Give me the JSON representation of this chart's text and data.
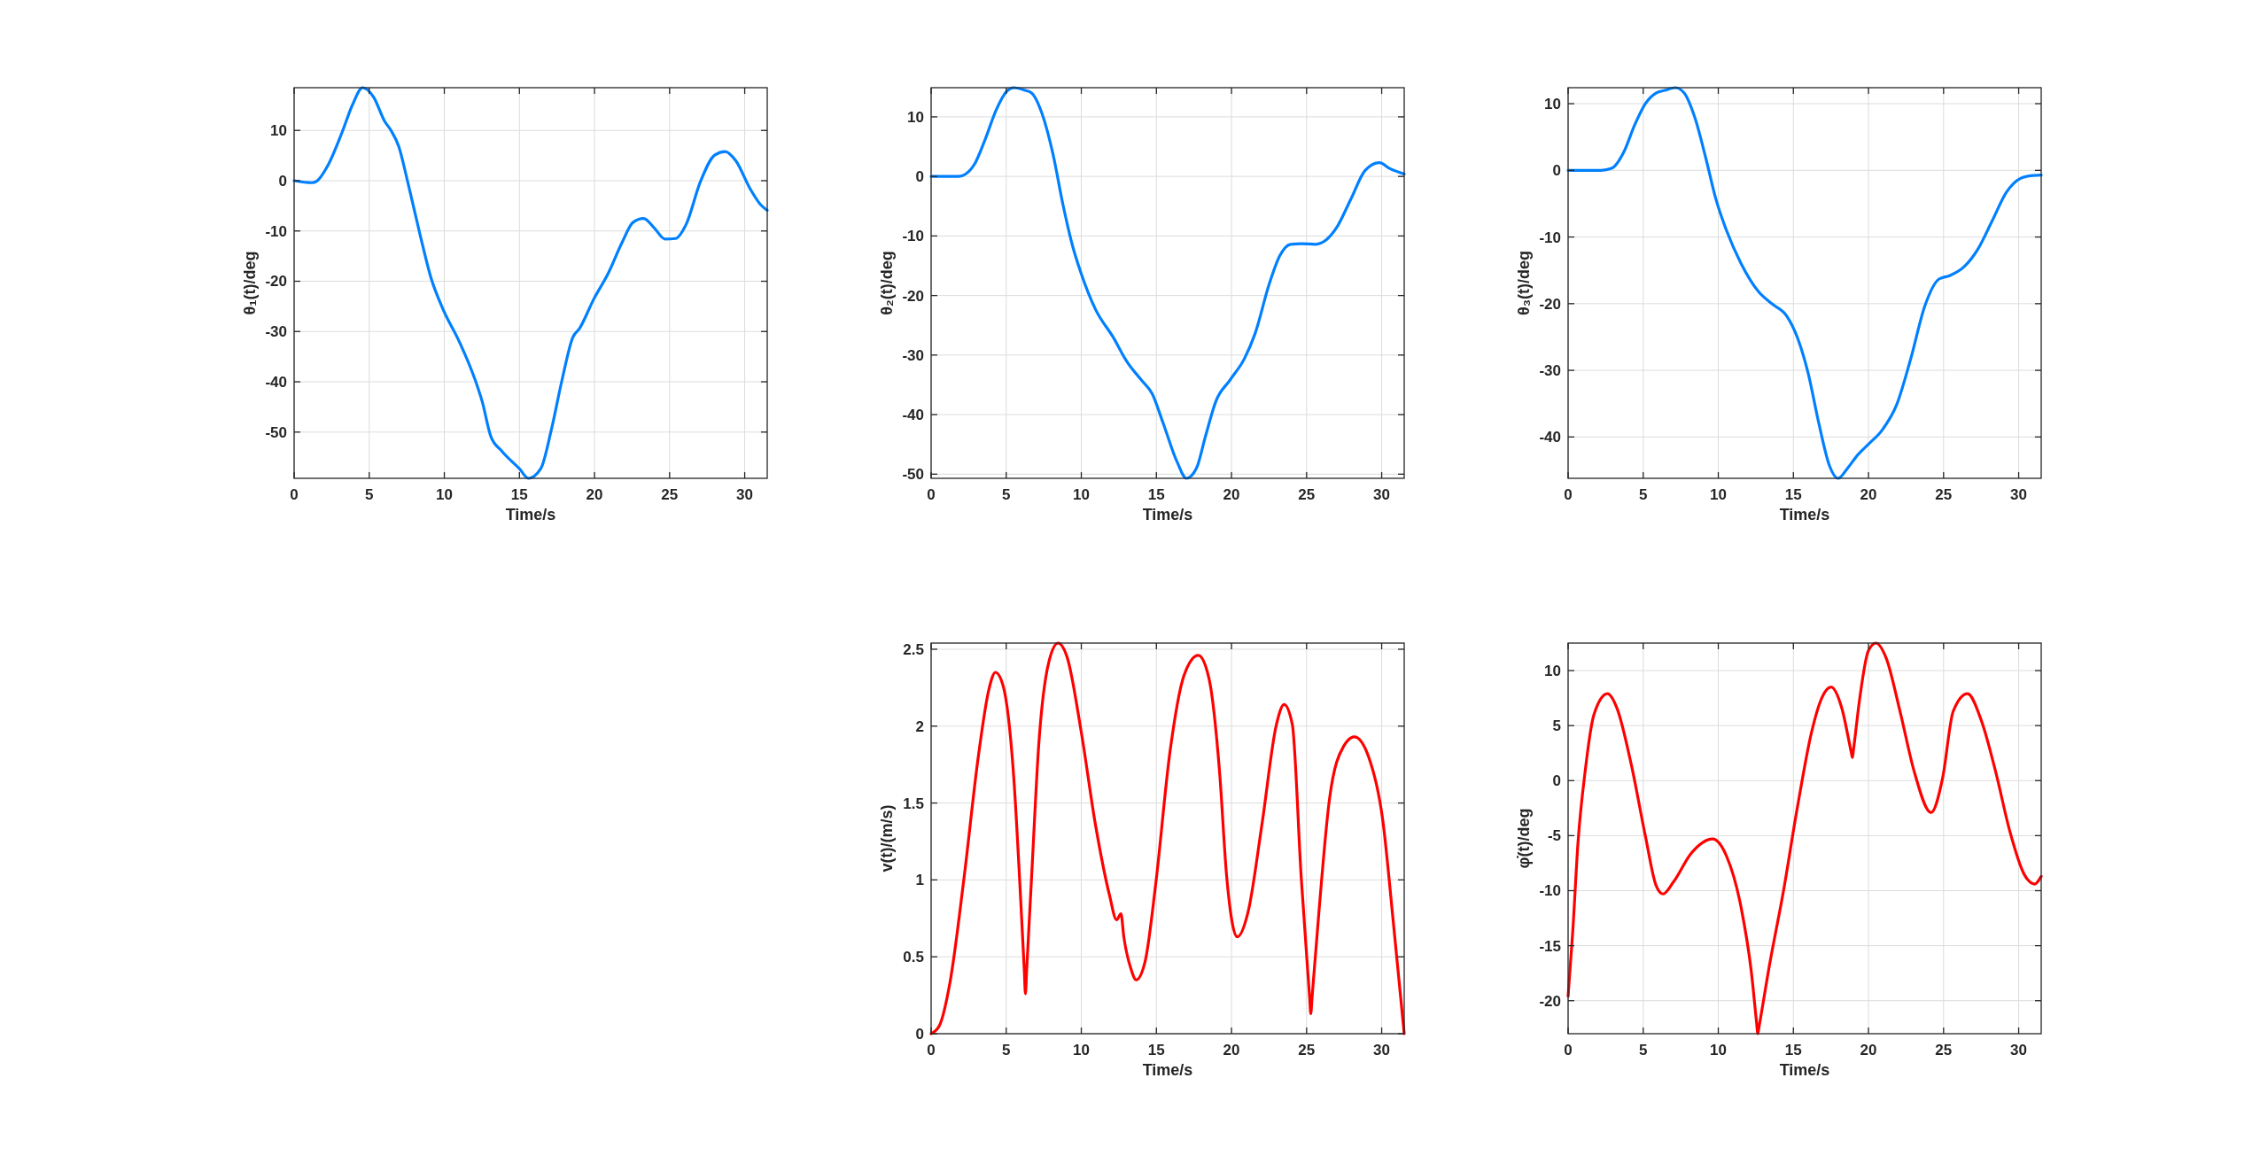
{
  "chart_data": [
    {
      "type": "line",
      "xlabel": "Time/s",
      "ylabel": "θ₁(t)/deg",
      "grid": true,
      "xlim": [
        0,
        31.5
      ],
      "ylim": [
        -59.2,
        18.5
      ],
      "xticks": [
        0,
        5,
        10,
        15,
        20,
        25,
        30
      ],
      "yticks": [
        -50,
        -40,
        -30,
        -20,
        -10,
        0,
        10
      ],
      "x": [
        0,
        1.18,
        1.5,
        2.24,
        3.19,
        3.9,
        4.56,
        5.3,
        6.03,
        6.45,
        6.97,
        7.56,
        8.39,
        9.1,
        9.92,
        10.98,
        12.05,
        12.52,
        13.1,
        13.8,
        15.0,
        15.6,
        16.42,
        17.13,
        17.84,
        18.55,
        19.0,
        19.96,
        20.9,
        21.85,
        22.56,
        23.27,
        23.98,
        24.69,
        25.4,
        26.1,
        27.05,
        28.0,
        28.7,
        29.4,
        30.36,
        31.07,
        31.5
      ],
      "series": [
        {
          "color": "#0080ff",
          "values": [
            0,
            -0.4,
            -0.1,
            3.0,
            9.6,
            15.2,
            18.5,
            16.6,
            11.8,
            10.0,
            6.8,
            -0.2,
            -10.8,
            -19.2,
            -25.6,
            -31.9,
            -39.6,
            -43.9,
            -50.9,
            -53.7,
            -57.3,
            -59.2,
            -57.3,
            -49.5,
            -39.6,
            -31.2,
            -29.4,
            -23.5,
            -18.5,
            -12.2,
            -8.3,
            -7.5,
            -9.4,
            -11.6,
            -11.5,
            -8.7,
            -0.2,
            5.1,
            5.8,
            4.0,
            -1.6,
            -4.8,
            -5.9
          ]
        }
      ]
    },
    {
      "type": "line",
      "xlabel": "Time/s",
      "ylabel": "θ₂(t)/deg",
      "grid": true,
      "xlim": [
        0,
        31.5
      ],
      "ylim": [
        -50.7,
        14.9
      ],
      "xticks": [
        0,
        5,
        10,
        15,
        20,
        25,
        30
      ],
      "yticks": [
        -50,
        -40,
        -30,
        -20,
        -10,
        0,
        10
      ],
      "x": [
        0,
        1.84,
        2.3,
        2.9,
        3.61,
        4.32,
        5.03,
        5.5,
        6.2,
        6.69,
        7.39,
        8.1,
        8.8,
        9.4,
        9.99,
        10.94,
        12.12,
        13.06,
        14.0,
        14.72,
        15.43,
        16.37,
        17.0,
        17.67,
        18.26,
        18.97,
        19.9,
        20.86,
        21.57,
        22.51,
        23.22,
        23.93,
        24.65,
        25.6,
        26.29,
        27.0,
        27.95,
        28.9,
        29.85,
        30.55,
        31.5
      ],
      "series": [
        {
          "color": "#0080ff",
          "values": [
            0,
            0,
            0.4,
            2.1,
            6.3,
            11.1,
            14.3,
            14.9,
            14.5,
            14.0,
            10.5,
            3.9,
            -5.0,
            -11.5,
            -16.3,
            -22.3,
            -27.0,
            -31.2,
            -34.2,
            -36.5,
            -41.3,
            -47.9,
            -50.7,
            -49.0,
            -43.7,
            -37.7,
            -34.2,
            -30.6,
            -26.4,
            -18.1,
            -13.3,
            -11.4,
            -11.3,
            -11.4,
            -10.7,
            -8.6,
            -3.8,
            1.0,
            2.3,
            1.3,
            0.4
          ]
        }
      ]
    },
    {
      "type": "line",
      "xlabel": "Time/s",
      "ylabel": "θ₃(t)/deg",
      "grid": true,
      "xlim": [
        0,
        31.5
      ],
      "ylim": [
        -46.2,
        12.4
      ],
      "xticks": [
        0,
        5,
        10,
        15,
        20,
        25,
        30
      ],
      "yticks": [
        -40,
        -30,
        -20,
        -10,
        0,
        10
      ],
      "x": [
        0,
        2.19,
        2.9,
        3.72,
        4.43,
        5.14,
        5.85,
        6.43,
        7.14,
        7.73,
        8.44,
        9.15,
        9.85,
        10.56,
        11.5,
        12.68,
        13.62,
        14.57,
        15.27,
        15.98,
        16.69,
        17.4,
        17.98,
        18.57,
        19.28,
        19.99,
        20.93,
        21.87,
        22.81,
        23.76,
        24.7,
        25.4,
        26.35,
        27.29,
        28.23,
        29.18,
        30.12,
        30.83,
        31.5
      ],
      "series": [
        {
          "color": "#0080ff",
          "values": [
            0,
            0,
            0.3,
            2.8,
            6.8,
            10.0,
            11.6,
            12.0,
            12.4,
            11.6,
            7.9,
            2.0,
            -4.4,
            -9.1,
            -13.9,
            -18.2,
            -20.1,
            -21.9,
            -25.1,
            -30.4,
            -37.9,
            -44.3,
            -46.2,
            -44.8,
            -42.7,
            -41.1,
            -38.9,
            -35.2,
            -28.3,
            -20.3,
            -16.3,
            -15.8,
            -14.5,
            -11.8,
            -7.6,
            -3.3,
            -1.2,
            -0.8,
            -0.7
          ]
        }
      ]
    },
    {
      "type": "line",
      "xlabel": "Time/s",
      "ylabel": "v(t)/(m/s)",
      "grid": true,
      "xlim": [
        0,
        31.5
      ],
      "ylim": [
        0,
        2.54
      ],
      "xticks": [
        0,
        5,
        10,
        15,
        20,
        25,
        30
      ],
      "yticks": [
        0,
        0.5,
        1,
        1.5,
        2,
        2.5
      ],
      "x": [
        0,
        0.54,
        1.25,
        2.2,
        3.14,
        3.85,
        4.28,
        4.8,
        5.5,
        5.98,
        6.2,
        6.28,
        6.36,
        6.69,
        7.16,
        7.87,
        8.46,
        9.05,
        10.0,
        10.94,
        11.88,
        12.35,
        12.64,
        12.83,
        13.31,
        13.65,
        14.25,
        14.95,
        15.9,
        16.84,
        17.79,
        18.5,
        19.2,
        19.68,
        20.39,
        21.1,
        22.04,
        22.99,
        23.5,
        24.05,
        24.64,
        25.2,
        25.28,
        25.36,
        25.82,
        26.53,
        27.47,
        28.18,
        29.13,
        30.07,
        30.78,
        31.5
      ],
      "series": [
        {
          "color": "#ff0000",
          "values": [
            0,
            0.05,
            0.33,
            1.02,
            1.8,
            2.24,
            2.35,
            2.26,
            1.67,
            0.84,
            0.42,
            0.26,
            0.41,
            1.02,
            1.87,
            2.43,
            2.54,
            2.45,
            1.96,
            1.36,
            0.9,
            0.74,
            0.78,
            0.63,
            0.42,
            0.35,
            0.47,
            0.97,
            1.83,
            2.33,
            2.46,
            2.31,
            1.71,
            1.02,
            0.63,
            0.79,
            1.37,
            2.01,
            2.14,
            2.01,
            1.02,
            0.24,
            0.13,
            0.23,
            0.79,
            1.53,
            1.87,
            1.93,
            1.8,
            1.39,
            0.72,
            0
          ]
        }
      ]
    },
    {
      "type": "line",
      "xlabel": "Time/s",
      "ylabel": "φ̇(t)/deg",
      "grid": true,
      "xlim": [
        0,
        31.5
      ],
      "ylim": [
        -23,
        12.5
      ],
      "xticks": [
        0,
        5,
        10,
        15,
        20,
        25,
        30
      ],
      "yticks": [
        -20,
        -15,
        -10,
        -5,
        0,
        5,
        10
      ],
      "x": [
        0,
        0.31,
        0.66,
        1.13,
        1.72,
        2.62,
        3.25,
        4.2,
        5.14,
        5.85,
        6.32,
        7.02,
        8.2,
        9.62,
        10.56,
        11.5,
        12.21,
        12.55,
        12.63,
        12.71,
        13.39,
        14.33,
        15.27,
        16.21,
        16.92,
        17.51,
        18.22,
        18.85,
        18.93,
        19.0,
        19.4,
        19.99,
        20.5,
        21.16,
        22.1,
        23.05,
        24.16,
        24.93,
        25.64,
        26.59,
        27.53,
        28.47,
        29.41,
        30.36,
        31.06,
        31.5
      ],
      "series": [
        {
          "color": "#ff0000",
          "values": [
            -19.6,
            -13.7,
            -5.6,
            0.8,
            6.0,
            7.9,
            6.6,
            1.5,
            -5.0,
            -9.5,
            -10.3,
            -9.2,
            -6.6,
            -5.3,
            -6.9,
            -11.4,
            -17.5,
            -22.0,
            -23.0,
            -22.4,
            -16.9,
            -10.1,
            -2.4,
            4.4,
            7.6,
            8.5,
            6.6,
            2.6,
            2.1,
            2.8,
            7.3,
            11.8,
            12.5,
            11.2,
            6.3,
            0.8,
            -2.9,
            0.2,
            6.3,
            7.9,
            5.4,
            0.8,
            -4.6,
            -8.5,
            -9.4,
            -8.7
          ]
        }
      ]
    }
  ]
}
